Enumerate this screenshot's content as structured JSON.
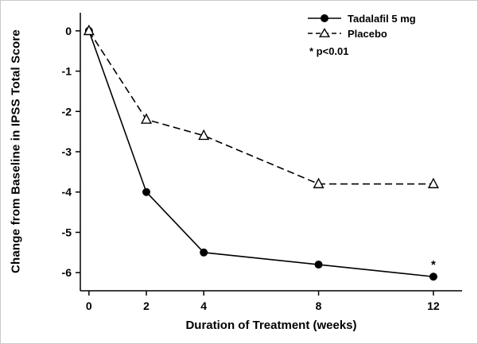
{
  "chart_data": {
    "type": "line",
    "title": "",
    "xlabel": "Duration of Treatment (weeks)",
    "ylabel": "Change from Baseline in IPSS Total Score",
    "x": [
      0,
      2,
      4,
      8,
      12
    ],
    "x_ticks": [
      0,
      2,
      4,
      8,
      12
    ],
    "y_ticks": [
      0,
      -1,
      -2,
      -3,
      -4,
      -5,
      -6
    ],
    "xlim": [
      -0.3,
      13
    ],
    "ylim": [
      -6.45,
      0.45
    ],
    "grid": false,
    "legend_position": "top-right-inside",
    "series": [
      {
        "name": "Tadalafil 5 mg",
        "values": [
          0,
          -4,
          -5.5,
          -5.8,
          -6.1
        ],
        "marker": "filled-circle",
        "line_style": "solid",
        "color": "#000000"
      },
      {
        "name": "Placebo",
        "values": [
          0,
          -2.2,
          -2.6,
          -3.8,
          -3.8
        ],
        "marker": "open-triangle",
        "line_style": "dashed",
        "color": "#000000"
      }
    ],
    "annotations": [
      {
        "text": "*",
        "x": 12,
        "y": -6.1
      }
    ]
  },
  "legend": {
    "items": [
      {
        "label": "Tadalafil 5 mg",
        "marker": "filled-circle",
        "line_style": "solid"
      },
      {
        "label": "Placebo",
        "marker": "open-triangle",
        "line_style": "dashed"
      }
    ],
    "note": "* p<0.01"
  },
  "colors": {
    "foreground": "#000000",
    "background": "#ffffff",
    "frame_border": "#c9c9c9"
  }
}
